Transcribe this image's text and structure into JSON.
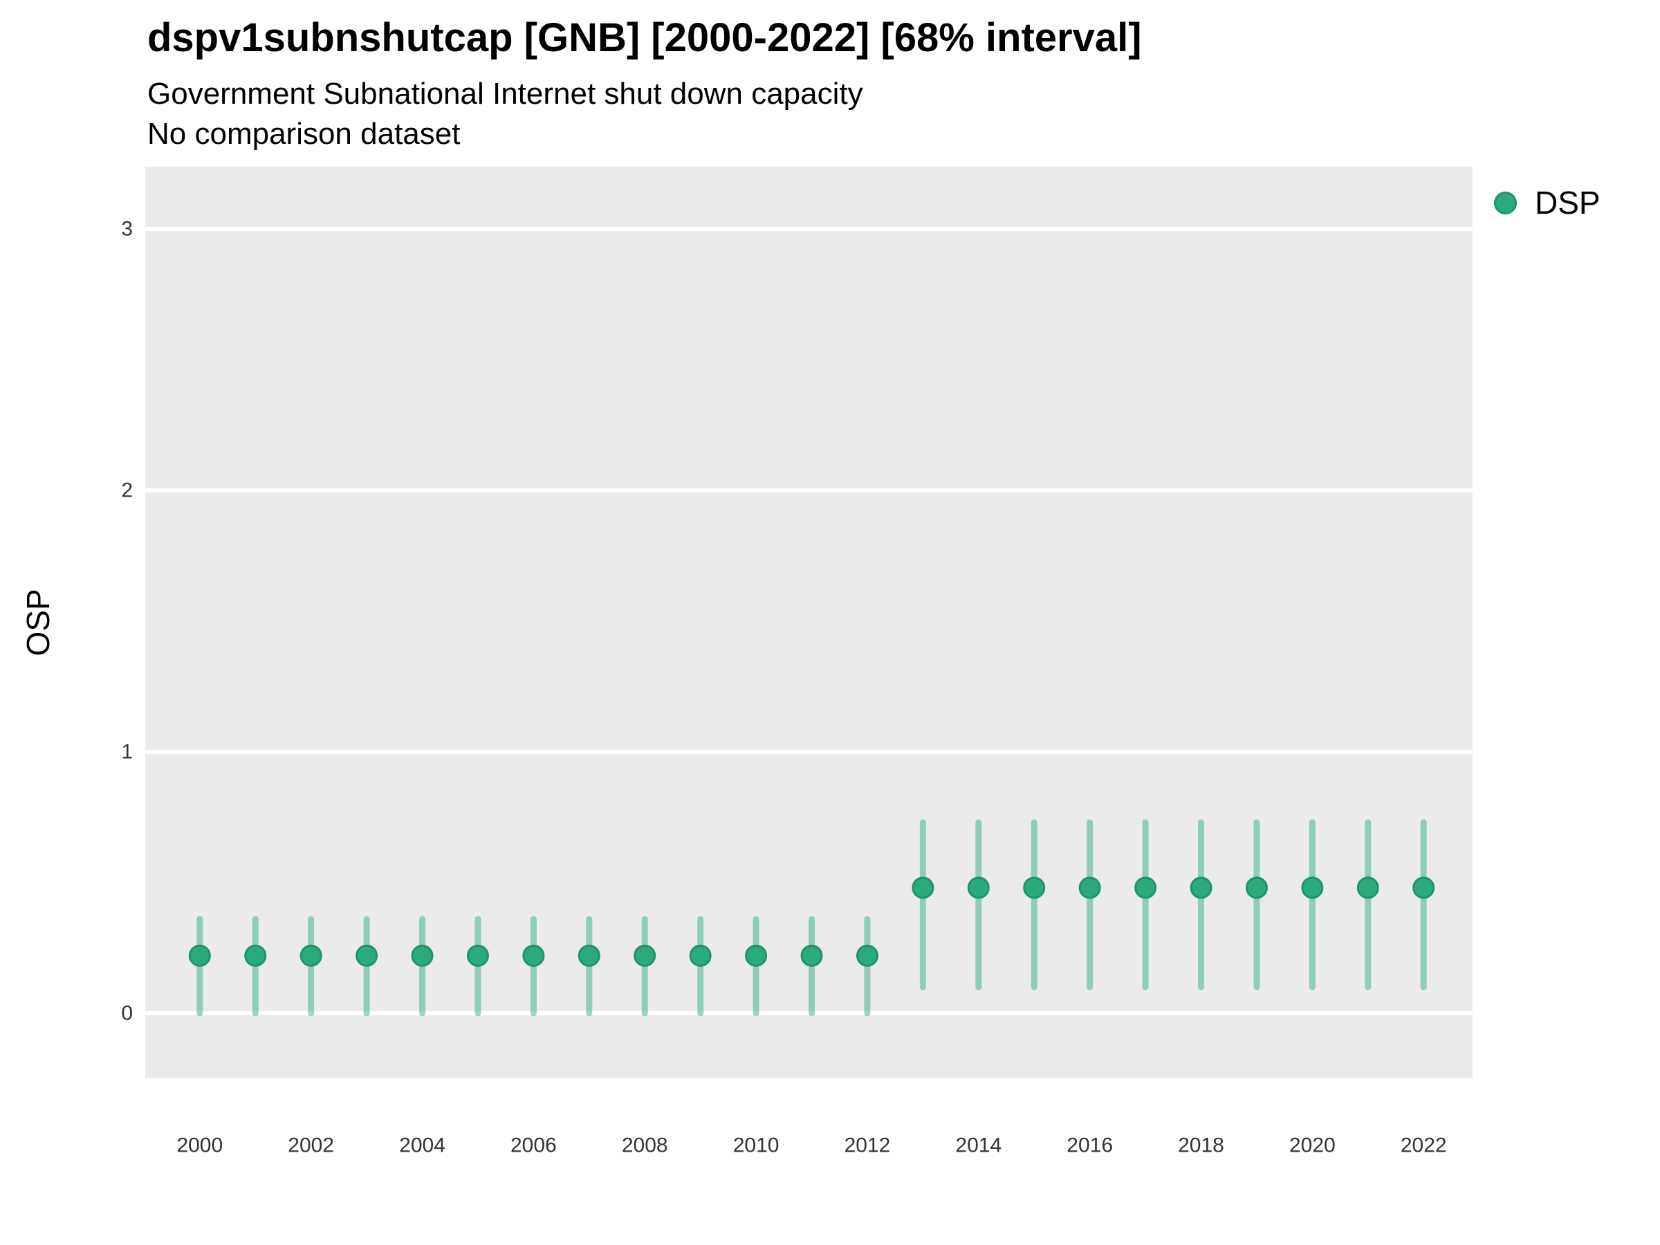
{
  "chart_data": {
    "type": "scatter",
    "title": "dspv1subnshutcap [GNB] [2000-2022] [68% interval]",
    "subtitle": "Government Subnational Internet shut down capacity",
    "subtitle2": "No comparison dataset",
    "xlabel": "",
    "ylabel": "OSP",
    "interval_level": "68%",
    "x_ticks": [
      2000,
      2002,
      2004,
      2006,
      2008,
      2010,
      2012,
      2014,
      2016,
      2018,
      2020,
      2022
    ],
    "y_ticks": [
      0,
      1,
      2,
      3
    ],
    "xlim": [
      1999.02,
      2022.88
    ],
    "ylim": [
      -0.249,
      3.238
    ],
    "grid": "horizontal major gridlines only, white on gray panel",
    "panel_bg": "#EBEBEB",
    "gridline_color": "#FFFFFF",
    "axis_text_color": "#333333",
    "legend": {
      "position": "right-top",
      "items": [
        {
          "label": "DSP",
          "color": "#2BAB7D"
        }
      ]
    },
    "series": [
      {
        "name": "DSP",
        "point_color": "#2BAB7D",
        "point_stroke": "#1E9467",
        "interval_color": "rgba(34,168,119,0.45)",
        "x": [
          2000,
          2001,
          2002,
          2003,
          2004,
          2005,
          2006,
          2007,
          2008,
          2009,
          2010,
          2011,
          2012,
          2013,
          2014,
          2015,
          2016,
          2017,
          2018,
          2019,
          2020,
          2021,
          2022
        ],
        "est": [
          0.22,
          0.22,
          0.22,
          0.22,
          0.22,
          0.22,
          0.22,
          0.22,
          0.22,
          0.22,
          0.22,
          0.22,
          0.22,
          0.48,
          0.48,
          0.48,
          0.48,
          0.48,
          0.48,
          0.48,
          0.48,
          0.48,
          0.48
        ],
        "lo": [
          0.0,
          0.0,
          0.0,
          0.0,
          0.0,
          0.0,
          0.0,
          0.0,
          0.0,
          0.0,
          0.0,
          0.0,
          0.0,
          0.1,
          0.1,
          0.1,
          0.1,
          0.1,
          0.1,
          0.1,
          0.1,
          0.1,
          0.1
        ],
        "hi": [
          0.36,
          0.36,
          0.36,
          0.36,
          0.36,
          0.36,
          0.36,
          0.36,
          0.36,
          0.36,
          0.36,
          0.36,
          0.36,
          0.73,
          0.73,
          0.73,
          0.73,
          0.73,
          0.73,
          0.73,
          0.73,
          0.73,
          0.73
        ]
      }
    ]
  }
}
